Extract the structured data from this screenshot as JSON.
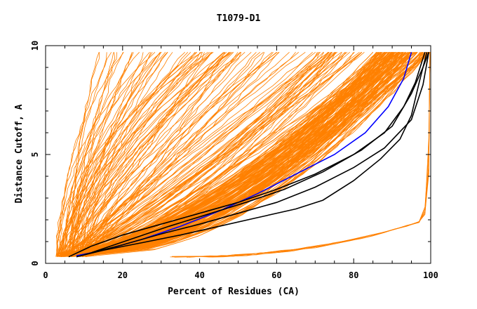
{
  "chart_data": {
    "type": "line",
    "title": "T1079-D1",
    "xlabel": "Percent of Residues (CA)",
    "ylabel": "Distance Cutoff, A",
    "xlim": [
      0,
      100
    ],
    "ylim": [
      0,
      10
    ],
    "x_ticks": [
      0,
      20,
      40,
      60,
      80,
      100
    ],
    "y_ticks": [
      0,
      5,
      10
    ],
    "grid": false,
    "legend": "none",
    "colors": {
      "bundle": "#ff8000",
      "highlight_black": "#000000",
      "highlight_blue": "#0000ff"
    },
    "series": [
      {
        "color": "#0000ff",
        "points": [
          [
            8,
            0.35
          ],
          [
            15,
            0.6
          ],
          [
            25,
            1.1
          ],
          [
            35,
            1.7
          ],
          [
            45,
            2.4
          ],
          [
            55,
            3.2
          ],
          [
            65,
            4.1
          ],
          [
            75,
            5.0
          ],
          [
            83,
            6.0
          ],
          [
            89,
            7.2
          ],
          [
            93,
            8.5
          ],
          [
            95,
            9.7
          ]
        ]
      },
      {
        "color": "#000000",
        "points": [
          [
            6,
            0.3
          ],
          [
            12,
            0.8
          ],
          [
            20,
            1.3
          ],
          [
            30,
            1.8
          ],
          [
            40,
            2.3
          ],
          [
            50,
            2.8
          ],
          [
            60,
            3.4
          ],
          [
            70,
            4.1
          ],
          [
            80,
            5.0
          ],
          [
            88,
            6.0
          ],
          [
            93,
            7.2
          ],
          [
            96,
            8.3
          ],
          [
            98.5,
            9.7
          ]
        ]
      },
      {
        "color": "#000000",
        "points": [
          [
            8,
            0.3
          ],
          [
            15,
            0.6
          ],
          [
            25,
            0.95
          ],
          [
            35,
            1.3
          ],
          [
            45,
            1.7
          ],
          [
            55,
            2.1
          ],
          [
            65,
            2.5
          ],
          [
            72,
            2.9
          ],
          [
            80,
            3.8
          ],
          [
            87,
            4.8
          ],
          [
            92,
            5.7
          ],
          [
            95,
            6.8
          ],
          [
            97,
            8.3
          ],
          [
            99,
            9.7
          ]
        ]
      },
      {
        "color": "#000000",
        "points": [
          [
            10,
            0.4
          ],
          [
            20,
            0.85
          ],
          [
            30,
            1.35
          ],
          [
            40,
            1.8
          ],
          [
            50,
            2.3
          ],
          [
            60,
            2.8
          ],
          [
            70,
            3.5
          ],
          [
            80,
            4.4
          ],
          [
            88,
            5.3
          ],
          [
            95,
            6.6
          ],
          [
            98,
            8.2
          ],
          [
            99.5,
            9.7
          ]
        ]
      },
      {
        "color": "#000000",
        "points": [
          [
            12,
            0.5
          ],
          [
            22,
            1.1
          ],
          [
            32,
            1.7
          ],
          [
            42,
            2.25
          ],
          [
            52,
            2.8
          ],
          [
            62,
            3.4
          ],
          [
            72,
            4.2
          ],
          [
            82,
            5.2
          ],
          [
            90,
            6.3
          ],
          [
            95,
            7.8
          ],
          [
            98,
            9.0
          ],
          [
            99.5,
            9.7
          ]
        ]
      }
    ]
  }
}
